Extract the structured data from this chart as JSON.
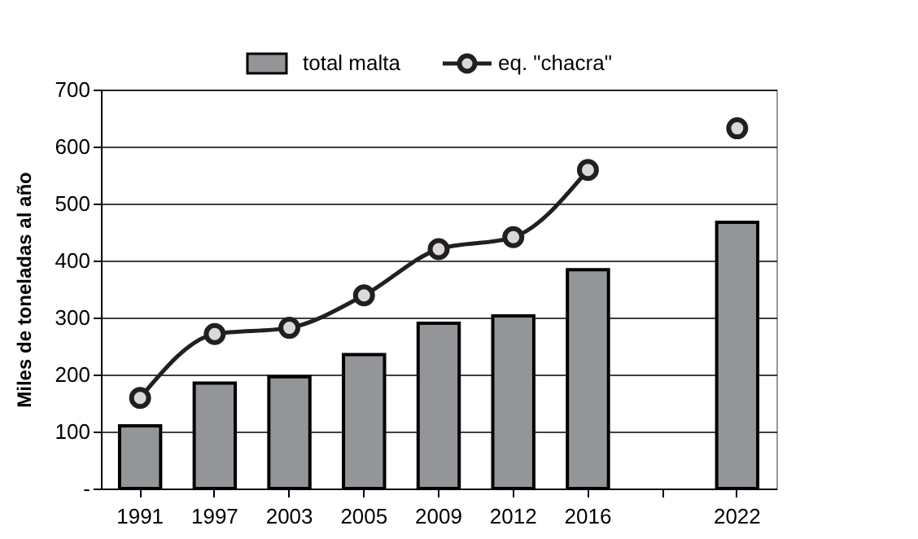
{
  "chart_data": {
    "type": "bar",
    "ylabel": "Miles de toneladas al año",
    "categories": [
      "1991",
      "1997",
      "2003",
      "2005",
      "2009",
      "2012",
      "2016",
      null,
      "2022"
    ],
    "series": [
      {
        "name": "total malta",
        "color": "#939598",
        "values": [
          110,
          185,
          196,
          235,
          290,
          303,
          384,
          null,
          467
        ]
      },
      {
        "name": "eq. \"chacra\"",
        "type": "line",
        "color": "#231f20",
        "marker": "circle",
        "values": [
          159,
          271,
          282,
          339,
          420,
          441,
          559,
          null,
          632
        ]
      }
    ],
    "ylim": [
      0,
      700
    ],
    "yticks": [
      {
        "value": 0,
        "label": "-"
      },
      100,
      200,
      300,
      400,
      500,
      600,
      700
    ],
    "grid": "y",
    "legend": "top"
  }
}
